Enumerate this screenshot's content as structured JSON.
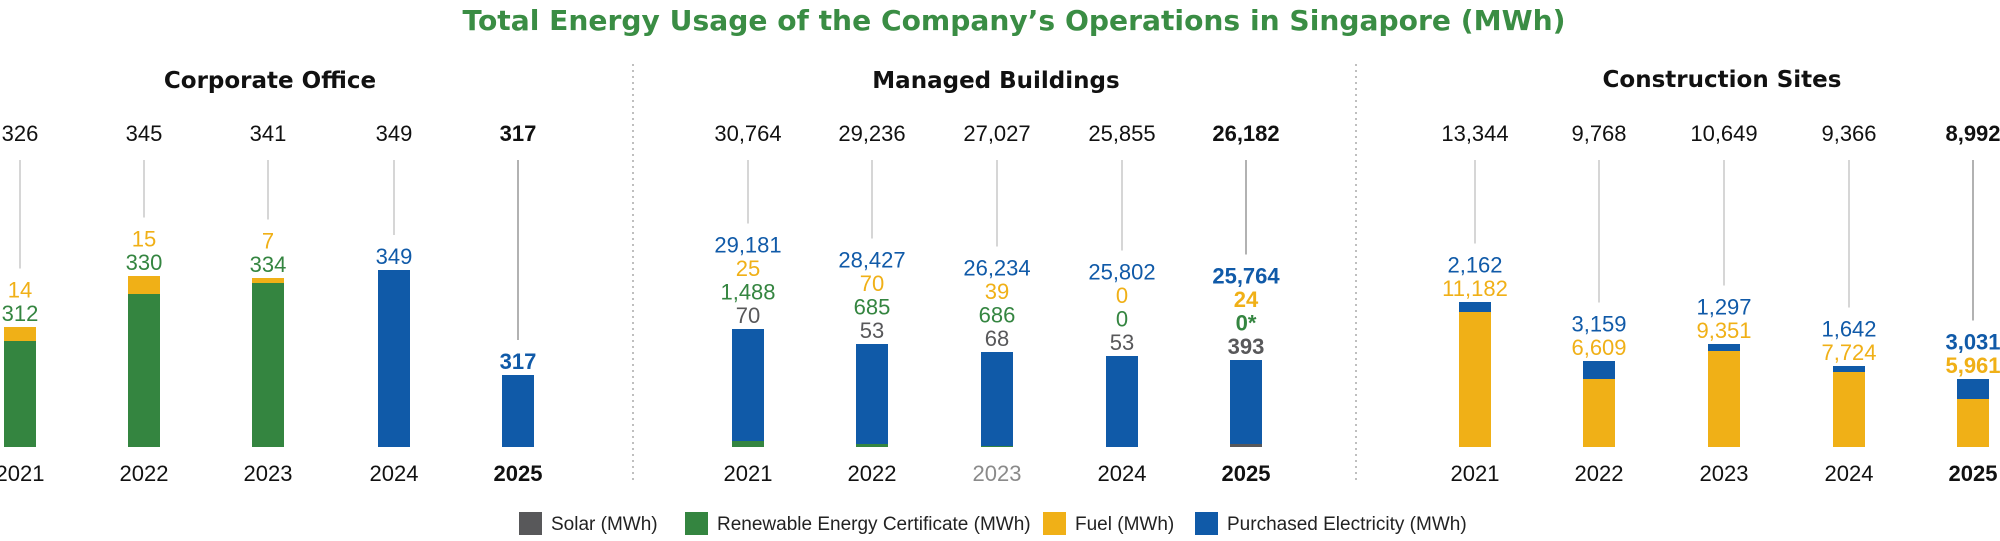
{
  "title": "Total Energy Usage of the Company’s Operations in Singapore (MWh)",
  "colors": {
    "title": "#3a8d44",
    "solar": "#58585a",
    "rec": "#348540",
    "fuel": "#f0b017",
    "purchased": "#105aa8",
    "total": "#111111",
    "leader": "#c8c8c8"
  },
  "legend": [
    {
      "key": "solar",
      "label": "Solar (MWh)"
    },
    {
      "key": "rec",
      "label": "Renewable Energy Certificate (MWh)"
    },
    {
      "key": "fuel",
      "label": "Fuel (MWh)"
    },
    {
      "key": "purchased",
      "label": "Purchased Electricity (MWh)"
    }
  ],
  "chart_data": [
    {
      "type": "bar",
      "stacked": true,
      "title": "Corporate Office",
      "categories": [
        "2021",
        "2022",
        "2023",
        "2024",
        "2025"
      ],
      "highlight_category": "2025",
      "totals": [
        326,
        345,
        341,
        349,
        317
      ],
      "series": [
        {
          "key": "solar",
          "name": "Solar (MWh)",
          "values": [
            null,
            null,
            null,
            null,
            null
          ]
        },
        {
          "key": "rec",
          "name": "Renewable Energy Certificate (MWh)",
          "values": [
            312,
            330,
            334,
            null,
            null
          ]
        },
        {
          "key": "fuel",
          "name": "Fuel (MWh)",
          "values": [
            14,
            15,
            7,
            null,
            null
          ]
        },
        {
          "key": "purchased",
          "name": "Purchased Electricity (MWh)",
          "values": [
            null,
            null,
            null,
            349,
            317
          ]
        }
      ]
    },
    {
      "type": "bar",
      "stacked": true,
      "title": "Managed Buildings",
      "categories": [
        "2021",
        "2022",
        "2023",
        "2024",
        "2025"
      ],
      "highlight_category": "2025",
      "muted_category": "2023",
      "totals": [
        30764,
        29236,
        27027,
        25855,
        26182
      ],
      "series": [
        {
          "key": "solar",
          "name": "Solar (MWh)",
          "values": [
            70,
            53,
            68,
            53,
            393
          ]
        },
        {
          "key": "rec",
          "name": "Renewable Energy Certificate (MWh)",
          "values": [
            1488,
            685,
            686,
            0,
            0
          ],
          "footnote_marks": [
            "",
            "",
            "",
            "",
            "*"
          ]
        },
        {
          "key": "fuel",
          "name": "Fuel (MWh)",
          "values": [
            25,
            70,
            39,
            0,
            24
          ]
        },
        {
          "key": "purchased",
          "name": "Purchased Electricity (MWh)",
          "values": [
            29181,
            28427,
            26234,
            25802,
            25764
          ]
        }
      ]
    },
    {
      "type": "bar",
      "stacked": true,
      "title": "Construction Sites",
      "categories": [
        "2021",
        "2022",
        "2023",
        "2024",
        "2025"
      ],
      "highlight_category": "2025",
      "totals": [
        13344,
        9768,
        10649,
        9366,
        8992
      ],
      "series": [
        {
          "key": "solar",
          "name": "Solar (MWh)",
          "values": [
            null,
            null,
            null,
            null,
            null
          ]
        },
        {
          "key": "rec",
          "name": "Renewable Energy Certificate (MWh)",
          "values": [
            null,
            null,
            null,
            null,
            null
          ]
        },
        {
          "key": "fuel",
          "name": "Fuel (MWh)",
          "values": [
            11182,
            6609,
            9351,
            7724,
            5961
          ]
        },
        {
          "key": "purchased",
          "name": "Purchased Electricity (MWh)",
          "values": [
            2162,
            3159,
            1297,
            1642,
            3031
          ]
        }
      ]
    }
  ]
}
